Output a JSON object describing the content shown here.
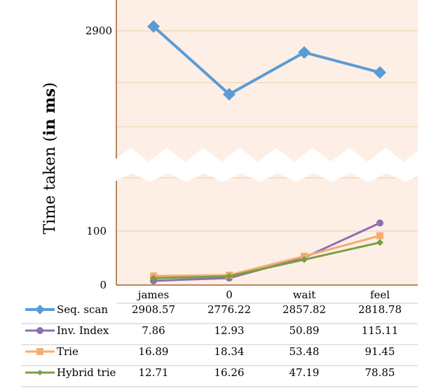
{
  "chart_data": {
    "type": "line",
    "ylabel_prefix": "Time taken (",
    "ylabel_bold": "in ms",
    "ylabel_suffix": ")",
    "y_axis_break": true,
    "grid": true,
    "legend_placement": "data-table-left",
    "categories": [
      "james",
      "0",
      "wait",
      "feel"
    ],
    "y_ticks": [
      "0",
      "100",
      "2900"
    ],
    "series": [
      {
        "name": "Seq. scan",
        "values": [
          2908.57,
          2776.22,
          2857.82,
          2818.78
        ],
        "labels": [
          "2908.57",
          "2776.22",
          "2857.82",
          "2818.78"
        ],
        "color": "#5b9bd5",
        "marker": "diamond"
      },
      {
        "name": "Inv. Index",
        "values": [
          7.86,
          12.93,
          50.89,
          115.11
        ],
        "labels": [
          "7.86",
          "12.93",
          "50.89",
          "115.11"
        ],
        "color": "#8e6fb0",
        "marker": "circle"
      },
      {
        "name": "Trie",
        "values": [
          16.89,
          18.34,
          53.48,
          91.45
        ],
        "labels": [
          "16.89",
          "18.34",
          "53.48",
          "91.45"
        ],
        "color": "#f4ac70",
        "marker": "square"
      },
      {
        "name": "Hybrid trie",
        "values": [
          12.71,
          16.26,
          47.19,
          78.85
        ],
        "labels": [
          "12.71",
          "16.26",
          "47.19",
          "78.85"
        ],
        "color": "#76a043",
        "marker": "diamond-small"
      }
    ],
    "colors": {
      "plot_background": "#fdefe6",
      "gridline": "#f6d3b3",
      "axis": "#a0622d",
      "table_rule": "#c8c8c8"
    }
  }
}
